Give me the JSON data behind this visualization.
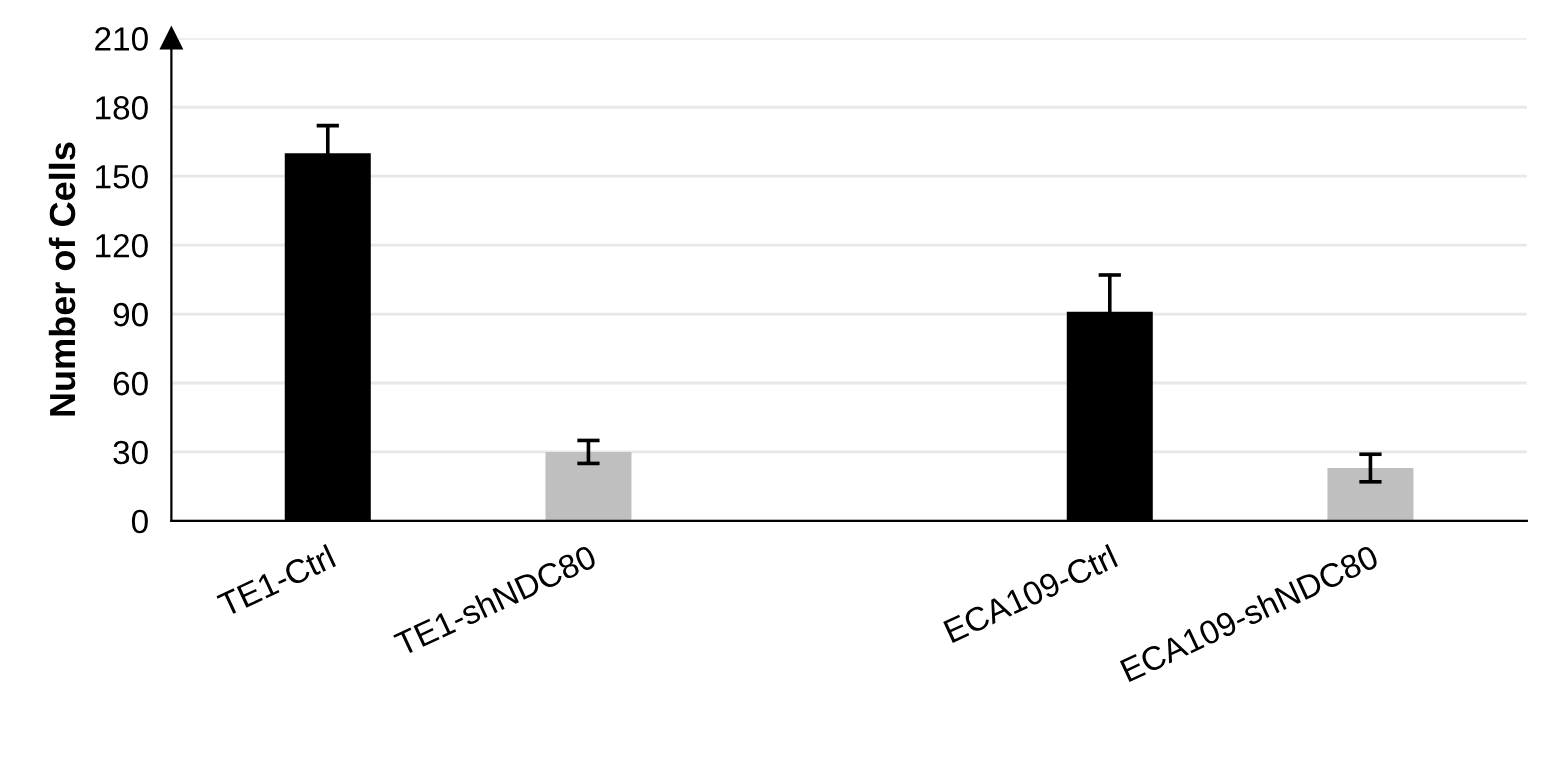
{
  "chart_data": {
    "type": "bar",
    "ylabel": "Number of Cells",
    "categories": [
      "TE1-Ctrl",
      "TE1-shNDC80",
      null,
      "ECA109-Ctrl",
      "ECA109-shNDC80"
    ],
    "values": [
      160,
      30,
      null,
      91,
      23
    ],
    "errors": [
      12,
      5,
      null,
      16,
      6
    ],
    "colors": [
      "#000000",
      "#bfbfbf",
      null,
      "#000000",
      "#bfbfbf"
    ],
    "ylim": [
      0,
      210
    ],
    "yticks": [
      0,
      30,
      60,
      90,
      120,
      150,
      180,
      210
    ],
    "grid": "y"
  }
}
